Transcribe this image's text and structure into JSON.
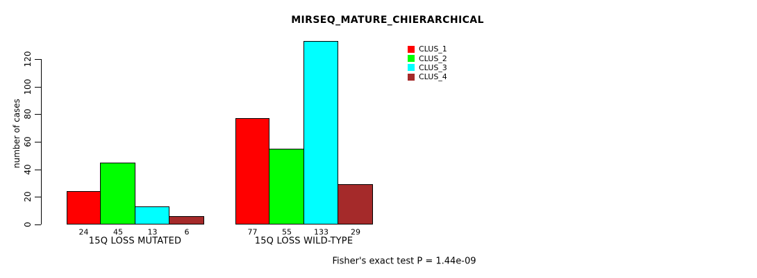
{
  "chart_data": {
    "type": "bar",
    "title": "MIRSEQ_MATURE_CHIERARCHICAL",
    "ylabel": "number of cases",
    "xlabel": "",
    "annotation": "Fisher's exact test P = 1.44e-09",
    "categories": [
      "15Q LOSS MUTATED",
      "15Q LOSS WILD-TYPE"
    ],
    "series": [
      {
        "name": "CLUS_1",
        "color": "#ff0000",
        "values": [
          24,
          77
        ]
      },
      {
        "name": "CLUS_2",
        "color": "#00ff00",
        "values": [
          45,
          55
        ]
      },
      {
        "name": "CLUS_3",
        "color": "#00ffff",
        "values": [
          13,
          133
        ]
      },
      {
        "name": "CLUS_4",
        "color": "#a52a2a",
        "values": [
          6,
          29
        ]
      }
    ],
    "bar_value_labels": [
      [
        24,
        45,
        13,
        6
      ],
      [
        77,
        55,
        133,
        29
      ]
    ],
    "yticks": [
      0,
      20,
      40,
      60,
      80,
      100,
      120
    ],
    "ylim": [
      0,
      133
    ],
    "grid": false,
    "bar_border_color": "#000000",
    "legend": {
      "position": "top-right",
      "entries": [
        "CLUS_1",
        "CLUS_2",
        "CLUS_3",
        "CLUS_4"
      ]
    }
  }
}
